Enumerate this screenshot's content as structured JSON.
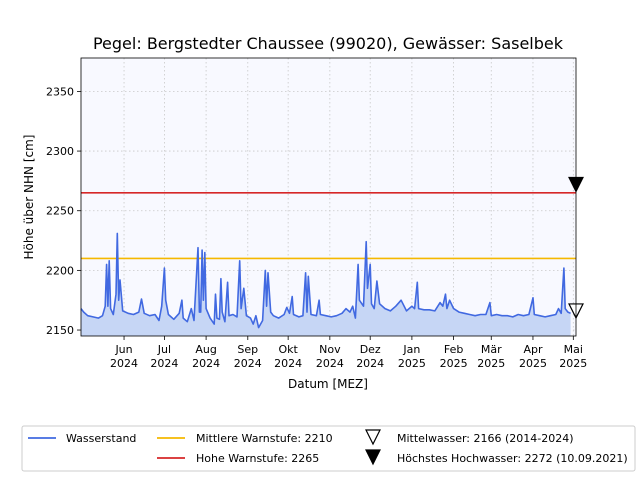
{
  "chart_data": {
    "type": "line",
    "title": "Pegel:  Bergstedter Chaussee (99020), Gewässer:  Saselbek",
    "xlabel": "Datum [MEZ]",
    "ylabel": "Höhe über NHN [cm]",
    "ylim": [
      2145,
      2378
    ],
    "yticks": [
      2150,
      2200,
      2250,
      2300,
      2350
    ],
    "x_range": [
      "2024-04-30",
      "2025-05-03"
    ],
    "xticks": [
      {
        "date": "2024-06-01",
        "month": "Jun",
        "year": "2024"
      },
      {
        "date": "2024-07-01",
        "month": "Jul",
        "year": "2024"
      },
      {
        "date": "2024-08-01",
        "month": "Aug",
        "year": "2024"
      },
      {
        "date": "2024-09-01",
        "month": "Sep",
        "year": "2024"
      },
      {
        "date": "2024-10-01",
        "month": "Okt",
        "year": "2024"
      },
      {
        "date": "2024-11-01",
        "month": "Nov",
        "year": "2024"
      },
      {
        "date": "2024-12-01",
        "month": "Dez",
        "year": "2024"
      },
      {
        "date": "2025-01-01",
        "month": "Jan",
        "year": "2025"
      },
      {
        "date": "2025-02-01",
        "month": "Feb",
        "year": "2025"
      },
      {
        "date": "2025-03-01",
        "month": "Mär",
        "year": "2025"
      },
      {
        "date": "2025-04-01",
        "month": "Apr",
        "year": "2025"
      },
      {
        "date": "2025-05-01",
        "month": "Mai",
        "year": "2025"
      }
    ],
    "grid": true,
    "legend_placement": "bottom",
    "colors": {
      "wasserstand": "#4169e1",
      "fill": "#c6d6f5",
      "mittlere_warnstufe": "#f5b800",
      "hohe_warnstufe": "#d62728",
      "plot_background": "#f8f9ff"
    },
    "series": [
      {
        "name": "Wasserstand",
        "points": [
          [
            "2024-04-30",
            2168
          ],
          [
            "2024-05-02",
            2165
          ],
          [
            "2024-05-05",
            2162
          ],
          [
            "2024-05-09",
            2161
          ],
          [
            "2024-05-13",
            2160
          ],
          [
            "2024-05-16",
            2162
          ],
          [
            "2024-05-18",
            2170
          ],
          [
            "2024-05-19",
            2205
          ],
          [
            "2024-05-20",
            2170
          ],
          [
            "2024-05-21",
            2208
          ],
          [
            "2024-05-22",
            2168
          ],
          [
            "2024-05-24",
            2163
          ],
          [
            "2024-05-26",
            2180
          ],
          [
            "2024-05-27",
            2231
          ],
          [
            "2024-05-28",
            2175
          ],
          [
            "2024-05-29",
            2192
          ],
          [
            "2024-05-31",
            2166
          ],
          [
            "2024-06-04",
            2164
          ],
          [
            "2024-06-08",
            2163
          ],
          [
            "2024-06-12",
            2165
          ],
          [
            "2024-06-14",
            2176
          ],
          [
            "2024-06-16",
            2164
          ],
          [
            "2024-06-20",
            2162
          ],
          [
            "2024-06-24",
            2163
          ],
          [
            "2024-06-27",
            2158
          ],
          [
            "2024-06-29",
            2170
          ],
          [
            "2024-07-01",
            2202
          ],
          [
            "2024-07-02",
            2175
          ],
          [
            "2024-07-04",
            2163
          ],
          [
            "2024-07-08",
            2159
          ],
          [
            "2024-07-12",
            2164
          ],
          [
            "2024-07-14",
            2175
          ],
          [
            "2024-07-15",
            2160
          ],
          [
            "2024-07-18",
            2157
          ],
          [
            "2024-07-21",
            2168
          ],
          [
            "2024-07-23",
            2158
          ],
          [
            "2024-07-26",
            2219
          ],
          [
            "2024-07-27",
            2165
          ],
          [
            "2024-07-28",
            2165
          ],
          [
            "2024-07-29",
            2217
          ],
          [
            "2024-07-30",
            2175
          ],
          [
            "2024-07-31",
            2215
          ],
          [
            "2024-08-01",
            2168
          ],
          [
            "2024-08-04",
            2160
          ],
          [
            "2024-08-07",
            2155
          ],
          [
            "2024-08-08",
            2180
          ],
          [
            "2024-08-09",
            2160
          ],
          [
            "2024-08-11",
            2159
          ],
          [
            "2024-08-12",
            2193
          ],
          [
            "2024-08-13",
            2165
          ],
          [
            "2024-08-15",
            2157
          ],
          [
            "2024-08-17",
            2190
          ],
          [
            "2024-08-18",
            2162
          ],
          [
            "2024-08-21",
            2163
          ],
          [
            "2024-08-24",
            2161
          ],
          [
            "2024-08-26",
            2208
          ],
          [
            "2024-08-27",
            2168
          ],
          [
            "2024-08-29",
            2185
          ],
          [
            "2024-08-31",
            2162
          ],
          [
            "2024-09-03",
            2160
          ],
          [
            "2024-09-05",
            2155
          ],
          [
            "2024-09-07",
            2162
          ],
          [
            "2024-09-09",
            2152
          ],
          [
            "2024-09-12",
            2158
          ],
          [
            "2024-09-14",
            2200
          ],
          [
            "2024-09-15",
            2170
          ],
          [
            "2024-09-16",
            2198
          ],
          [
            "2024-09-18",
            2165
          ],
          [
            "2024-09-20",
            2162
          ],
          [
            "2024-09-24",
            2160
          ],
          [
            "2024-09-28",
            2163
          ],
          [
            "2024-09-30",
            2169
          ],
          [
            "2024-10-02",
            2164
          ],
          [
            "2024-10-04",
            2178
          ],
          [
            "2024-10-05",
            2163
          ],
          [
            "2024-10-09",
            2161
          ],
          [
            "2024-10-12",
            2162
          ],
          [
            "2024-10-14",
            2198
          ],
          [
            "2024-10-15",
            2165
          ],
          [
            "2024-10-16",
            2195
          ],
          [
            "2024-10-18",
            2163
          ],
          [
            "2024-10-22",
            2162
          ],
          [
            "2024-10-24",
            2175
          ],
          [
            "2024-10-25",
            2163
          ],
          [
            "2024-10-29",
            2162
          ],
          [
            "2024-11-02",
            2161
          ],
          [
            "2024-11-06",
            2162
          ],
          [
            "2024-11-10",
            2164
          ],
          [
            "2024-11-13",
            2168
          ],
          [
            "2024-11-16",
            2165
          ],
          [
            "2024-11-18",
            2170
          ],
          [
            "2024-11-20",
            2160
          ],
          [
            "2024-11-22",
            2205
          ],
          [
            "2024-11-23",
            2175
          ],
          [
            "2024-11-26",
            2170
          ],
          [
            "2024-11-28",
            2224
          ],
          [
            "2024-11-29",
            2185
          ],
          [
            "2024-12-01",
            2205
          ],
          [
            "2024-12-02",
            2172
          ],
          [
            "2024-12-04",
            2168
          ],
          [
            "2024-12-06",
            2191
          ],
          [
            "2024-12-08",
            2172
          ],
          [
            "2024-12-12",
            2168
          ],
          [
            "2024-12-16",
            2166
          ],
          [
            "2024-12-20",
            2170
          ],
          [
            "2024-12-24",
            2175
          ],
          [
            "2024-12-28",
            2166
          ],
          [
            "2025-01-01",
            2170
          ],
          [
            "2025-01-03",
            2168
          ],
          [
            "2025-01-05",
            2190
          ],
          [
            "2025-01-06",
            2168
          ],
          [
            "2025-01-10",
            2167
          ],
          [
            "2025-01-14",
            2167
          ],
          [
            "2025-01-18",
            2166
          ],
          [
            "2025-01-22",
            2173
          ],
          [
            "2025-01-24",
            2170
          ],
          [
            "2025-01-26",
            2180
          ],
          [
            "2025-01-27",
            2168
          ],
          [
            "2025-01-29",
            2175
          ],
          [
            "2025-02-01",
            2168
          ],
          [
            "2025-02-05",
            2165
          ],
          [
            "2025-02-09",
            2164
          ],
          [
            "2025-02-13",
            2163
          ],
          [
            "2025-02-17",
            2162
          ],
          [
            "2025-02-21",
            2163
          ],
          [
            "2025-02-25",
            2163
          ],
          [
            "2025-02-28",
            2173
          ],
          [
            "2025-03-01",
            2162
          ],
          [
            "2025-03-05",
            2163
          ],
          [
            "2025-03-09",
            2162
          ],
          [
            "2025-03-13",
            2162
          ],
          [
            "2025-03-17",
            2161
          ],
          [
            "2025-03-21",
            2163
          ],
          [
            "2025-03-25",
            2162
          ],
          [
            "2025-03-29",
            2163
          ],
          [
            "2025-04-01",
            2177
          ],
          [
            "2025-04-02",
            2163
          ],
          [
            "2025-04-06",
            2162
          ],
          [
            "2025-04-10",
            2161
          ],
          [
            "2025-04-14",
            2162
          ],
          [
            "2025-04-18",
            2163
          ],
          [
            "2025-04-20",
            2168
          ],
          [
            "2025-04-22",
            2164
          ],
          [
            "2025-04-24",
            2202
          ],
          [
            "2025-04-25",
            2168
          ],
          [
            "2025-04-27",
            2165
          ],
          [
            "2025-04-29",
            2164
          ]
        ]
      }
    ],
    "thresholds": [
      {
        "name": "Mittlere Warnstufe: 2210",
        "value": 2210
      },
      {
        "name": "Hohe Warnstufe: 2265",
        "value": 2265
      }
    ],
    "markers": [
      {
        "name": "Mittelwasser: 2166 (2014-2024)",
        "value": 2166,
        "style": "open-triangle-down"
      },
      {
        "name": "Höchstes Hochwasser: 2272 (10.09.2021)",
        "value": 2272,
        "style": "filled-triangle-down"
      }
    ]
  }
}
